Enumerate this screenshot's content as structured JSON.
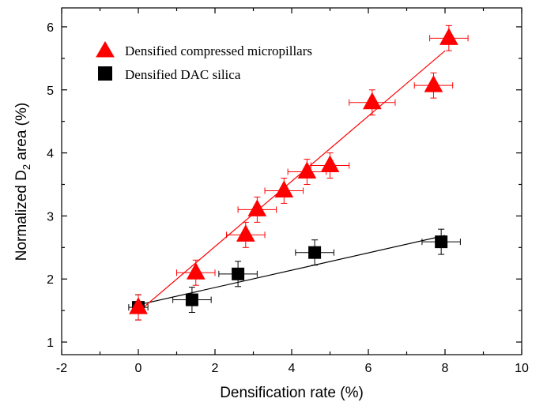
{
  "chart_data": {
    "type": "scatter",
    "xlabel": "Densification rate (%)",
    "ylabel": "Normalized D2 area (%)",
    "ylabel_parts": {
      "before": "Normalized D",
      "sub": "2",
      "after": " area (%)"
    },
    "xlim": [
      -2,
      10
    ],
    "ylim": [
      0.8,
      6.3
    ],
    "x_ticks": [
      -2,
      0,
      2,
      4,
      6,
      8,
      10
    ],
    "y_ticks": [
      1,
      2,
      3,
      4,
      5,
      6
    ],
    "grid": false,
    "legend_position": "top-left",
    "series": [
      {
        "name": "Densified compressed micropillars",
        "marker": "triangle",
        "color": "#ff0000",
        "errorbar_color": "#ff0000",
        "points": [
          {
            "x": 0.0,
            "y": 1.55,
            "xerr": 0.0,
            "yerr": 0.2
          },
          {
            "x": 1.5,
            "y": 2.1,
            "xerr": 0.5,
            "yerr": 0.2
          },
          {
            "x": 2.8,
            "y": 2.7,
            "xerr": 0.5,
            "yerr": 0.2
          },
          {
            "x": 3.1,
            "y": 3.1,
            "xerr": 0.5,
            "yerr": 0.2
          },
          {
            "x": 3.8,
            "y": 3.4,
            "xerr": 0.5,
            "yerr": 0.2
          },
          {
            "x": 4.4,
            "y": 3.7,
            "xerr": 0.5,
            "yerr": 0.2
          },
          {
            "x": 5.0,
            "y": 3.8,
            "xerr": 0.5,
            "yerr": 0.2
          },
          {
            "x": 6.1,
            "y": 4.8,
            "xerr": 0.6,
            "yerr": 0.2
          },
          {
            "x": 7.7,
            "y": 5.07,
            "xerr": 0.5,
            "yerr": 0.2
          },
          {
            "x": 8.1,
            "y": 5.82,
            "xerr": 0.5,
            "yerr": 0.2
          }
        ],
        "fit": {
          "x": [
            0.0,
            8.0
          ],
          "y": [
            1.48,
            5.62
          ],
          "color": "#ff0000"
        }
      },
      {
        "name": "Densified DAC silica",
        "marker": "square",
        "color": "#000000",
        "errorbar_color": "#000000",
        "points": [
          {
            "x": 0.0,
            "y": 1.55,
            "xerr": 0.25,
            "yerr": 0.2
          },
          {
            "x": 1.4,
            "y": 1.67,
            "xerr": 0.5,
            "yerr": 0.2
          },
          {
            "x": 2.6,
            "y": 2.08,
            "xerr": 0.5,
            "yerr": 0.2
          },
          {
            "x": 4.6,
            "y": 2.42,
            "xerr": 0.5,
            "yerr": 0.2
          },
          {
            "x": 7.9,
            "y": 2.59,
            "xerr": 0.5,
            "yerr": 0.2
          }
        ],
        "fit": {
          "x": [
            0.0,
            8.0
          ],
          "y": [
            1.59,
            2.69
          ],
          "color": "#000000"
        }
      }
    ]
  }
}
